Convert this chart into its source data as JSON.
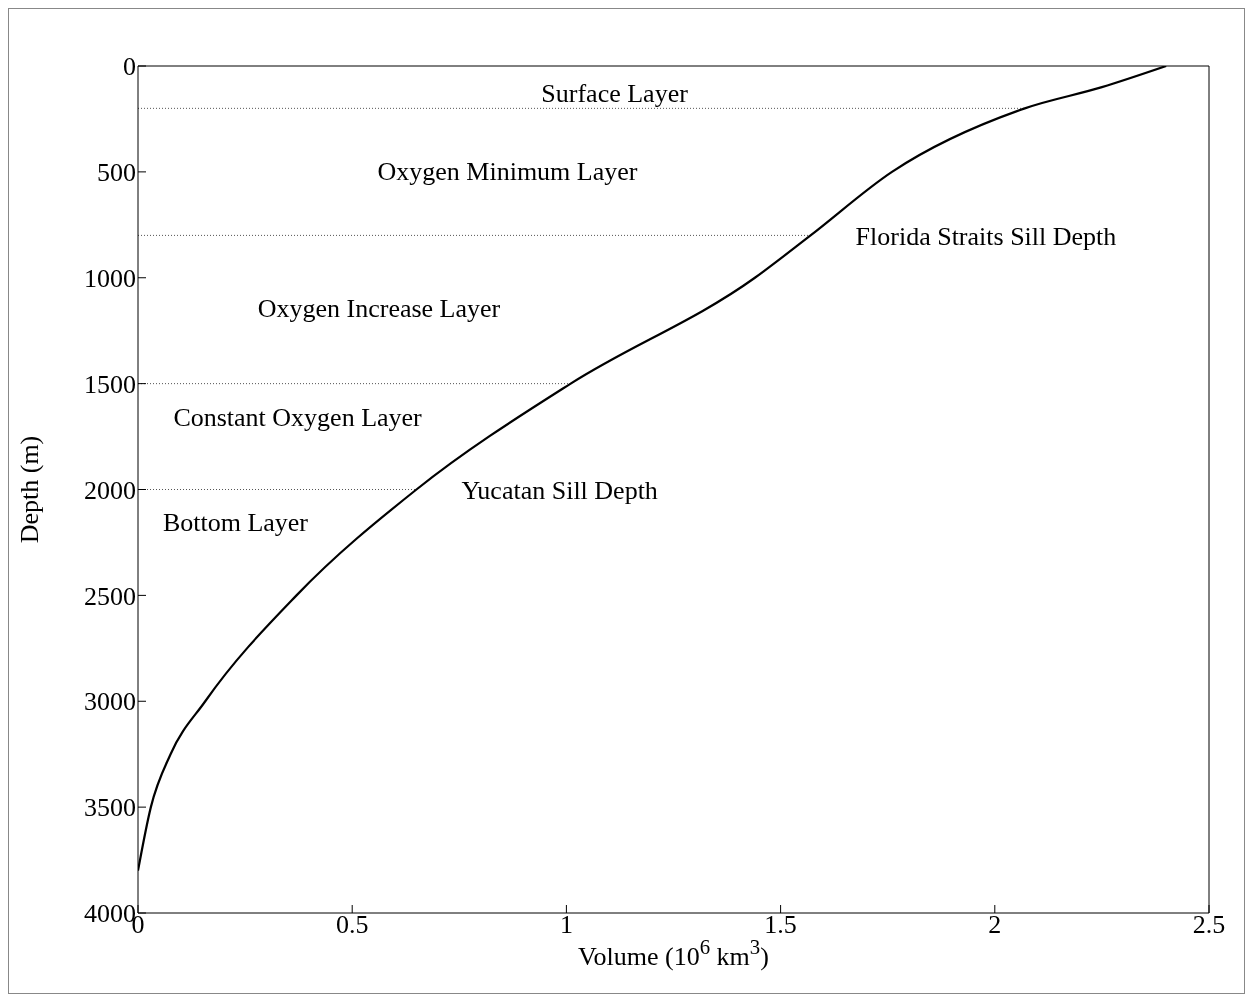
{
  "chart_data": {
    "type": "line",
    "xlabel": "Volume (10$^{6}$ km$^{3}$)",
    "ylabel": "Depth (m)",
    "xlim": [
      0,
      2.5
    ],
    "xticks": [
      0,
      0.5,
      1,
      1.5,
      2,
      2.5
    ],
    "ylim": [
      4000,
      0
    ],
    "yticks": [
      0,
      500,
      1000,
      1500,
      2000,
      2500,
      3000,
      3500,
      4000
    ],
    "grid": false,
    "legend": false,
    "marker": "none",
    "line_style": "solid",
    "series": [
      {
        "color": "#000000",
        "x": [
          2.4,
          2.25,
          2.07,
          1.76,
          1.57,
          1.44,
          1.01,
          0.65,
          0.37,
          0.157,
          0.076,
          0.03,
          0
        ],
        "values": [
          0,
          100,
          200,
          500,
          800,
          1000,
          1500,
          2000,
          2500,
          3000,
          3250,
          3500,
          3800
        ]
      }
    ],
    "ref_lines": [
      {
        "axis": "y",
        "value": 200,
        "line_style": "dotted",
        "color": "#555555"
      },
      {
        "axis": "y",
        "value": 800,
        "label": "Florida Straits Sill Depth",
        "line_style": "dotted",
        "color": "#555555"
      },
      {
        "axis": "y",
        "value": 1500,
        "line_style": "dotted",
        "color": "#555555"
      },
      {
        "axis": "y",
        "value": 2000,
        "label": "Yucatan Sill Depth",
        "line_style": "dotted",
        "color": "#555555"
      }
    ],
    "annotations": [
      "Surface Layer",
      "Oxygen Minimum Layer",
      "Oxygen Increase Layer",
      "Constant Oxygen Layer",
      "Bottom Layer"
    ]
  }
}
